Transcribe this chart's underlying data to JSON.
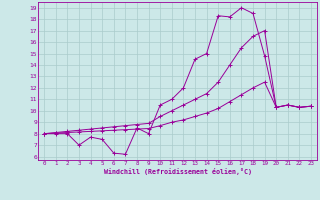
{
  "xlabel": "Windchill (Refroidissement éolien,°C)",
  "bg_color": "#cce8e8",
  "line_color": "#990099",
  "grid_color": "#aacccc",
  "xlim": [
    -0.5,
    23.5
  ],
  "ylim": [
    5.7,
    19.5
  ],
  "xticks": [
    0,
    1,
    2,
    3,
    4,
    5,
    6,
    7,
    8,
    9,
    10,
    11,
    12,
    13,
    14,
    15,
    16,
    17,
    18,
    19,
    20,
    21,
    22,
    23
  ],
  "yticks": [
    6,
    7,
    8,
    9,
    10,
    11,
    12,
    13,
    14,
    15,
    16,
    17,
    18,
    19
  ],
  "line1_x": [
    0,
    1,
    2,
    3,
    4,
    5,
    6,
    7,
    8,
    9,
    10,
    11,
    12,
    13,
    14,
    15,
    16,
    17,
    18,
    19,
    20,
    21,
    22,
    23
  ],
  "line1_y": [
    8,
    8,
    8,
    7,
    7.7,
    7.5,
    6.3,
    6.2,
    8.5,
    8,
    10.5,
    11,
    12,
    14.5,
    15,
    18.3,
    18.2,
    19,
    18.5,
    14.8,
    10.3,
    10.5,
    10.3,
    10.4
  ],
  "line2_x": [
    0,
    1,
    2,
    3,
    4,
    5,
    6,
    7,
    8,
    9,
    10,
    11,
    12,
    13,
    14,
    15,
    16,
    17,
    18,
    19,
    20,
    21,
    22,
    23
  ],
  "line2_y": [
    8.0,
    8.1,
    8.2,
    8.3,
    8.4,
    8.5,
    8.6,
    8.7,
    8.8,
    8.9,
    9.5,
    10.0,
    10.5,
    11.0,
    11.5,
    12.5,
    14.0,
    15.5,
    16.5,
    17.0,
    10.3,
    10.5,
    10.3,
    10.4
  ],
  "line3_x": [
    0,
    1,
    2,
    3,
    4,
    5,
    6,
    7,
    8,
    9,
    10,
    11,
    12,
    13,
    14,
    15,
    16,
    17,
    18,
    19,
    20,
    21,
    22,
    23
  ],
  "line3_y": [
    8.0,
    8.05,
    8.1,
    8.15,
    8.2,
    8.25,
    8.3,
    8.35,
    8.4,
    8.45,
    8.7,
    9.0,
    9.2,
    9.5,
    9.8,
    10.2,
    10.8,
    11.4,
    12.0,
    12.5,
    10.3,
    10.5,
    10.3,
    10.4
  ]
}
